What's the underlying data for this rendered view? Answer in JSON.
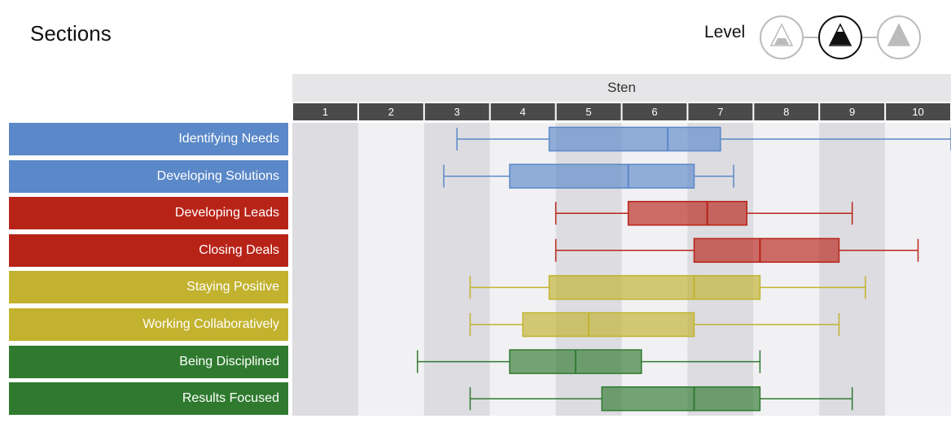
{
  "header": {
    "title": "Sections",
    "level_label": "Level",
    "level_buttons": [
      {
        "name": "level-low-icon",
        "active": false
      },
      {
        "name": "level-mid-icon",
        "active": true
      },
      {
        "name": "level-high-icon",
        "active": false
      }
    ]
  },
  "chart_data": {
    "type": "boxplot",
    "axis_title": "Sten",
    "x_ticks": [
      "1",
      "2",
      "3",
      "4",
      "5",
      "6",
      "7",
      "8",
      "9",
      "10"
    ],
    "xlim": [
      0.5,
      10.5
    ],
    "series": [
      {
        "name": "Identifying Needs",
        "color": "#5a88c8",
        "min": 3.0,
        "q1": 4.4,
        "median": 6.2,
        "q3": 7.0,
        "max": 10.5
      },
      {
        "name": "Developing Solutions",
        "color": "#5a88c8",
        "min": 2.8,
        "q1": 3.8,
        "median": 5.6,
        "q3": 6.6,
        "max": 7.2
      },
      {
        "name": "Developing Leads",
        "color": "#b82318",
        "min": 4.5,
        "q1": 5.6,
        "median": 6.8,
        "q3": 7.4,
        "max": 9.0
      },
      {
        "name": "Closing Deals",
        "color": "#b82318",
        "min": 4.5,
        "q1": 6.6,
        "median": 7.6,
        "q3": 8.8,
        "max": 10.0
      },
      {
        "name": "Staying Positive",
        "color": "#c2b22e",
        "min": 3.2,
        "q1": 4.4,
        "median": 6.6,
        "q3": 7.6,
        "max": 9.2
      },
      {
        "name": "Working Collaboratively",
        "color": "#c2b22e",
        "min": 3.2,
        "q1": 4.0,
        "median": 5.0,
        "q3": 6.6,
        "max": 8.8
      },
      {
        "name": "Being Disciplined",
        "color": "#2f7a2f",
        "min": 2.4,
        "q1": 3.8,
        "median": 4.8,
        "q3": 5.8,
        "max": 7.6
      },
      {
        "name": "Results Focused",
        "color": "#2f7a2f",
        "min": 3.2,
        "q1": 5.2,
        "median": 6.6,
        "q3": 7.6,
        "max": 9.0
      }
    ]
  }
}
